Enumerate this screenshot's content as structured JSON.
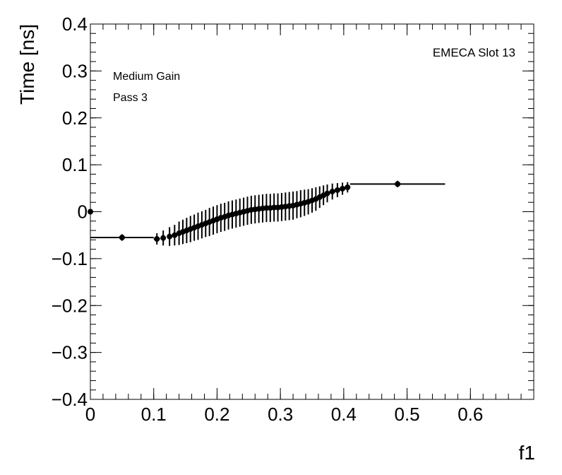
{
  "chart_data": {
    "type": "scatter",
    "xlabel": "f1",
    "ylabel": "Time [ns]",
    "xlim": [
      0,
      0.7
    ],
    "ylim": [
      -0.4,
      0.4
    ],
    "x_ticks": [
      0,
      0.1,
      0.2,
      0.3,
      0.4,
      0.5,
      0.6
    ],
    "x_tick_labels": [
      "0",
      "0.1",
      "0.2",
      "0.3",
      "0.4",
      "0.5",
      "0.6"
    ],
    "y_ticks": [
      -0.4,
      -0.3,
      -0.2,
      -0.1,
      0,
      0.1,
      0.2,
      0.3,
      0.4
    ],
    "y_tick_labels": [
      "−0.4",
      "−0.3",
      "−0.2",
      "−0.1",
      "0",
      "0.1",
      "0.2",
      "0.3",
      "0.4"
    ],
    "grid": false,
    "annotations": {
      "top_right": "EMECA Slot 13",
      "line1": "Medium Gain",
      "line2": "Pass 3"
    },
    "series": [
      {
        "points": [
          {
            "x": 0.0,
            "y": 0.0,
            "xerr": [
              0,
              0
            ],
            "yerr": 0.004
          },
          {
            "x": 0.05,
            "y": -0.055,
            "xerr": [
              0.05,
              0.05
            ],
            "yerr": 0.007
          },
          {
            "x": 0.105,
            "y": -0.058,
            "xerr": [
              0.005,
              0.005
            ],
            "yerr": 0.012
          },
          {
            "x": 0.115,
            "y": -0.056,
            "xerr": [
              0.004,
              0.004
            ],
            "yerr": 0.016
          },
          {
            "x": 0.125,
            "y": -0.053,
            "xerr": [
              0.004,
              0.004
            ],
            "yerr": 0.02
          },
          {
            "x": 0.133,
            "y": -0.05,
            "xerr": [
              0.003,
              0.003
            ],
            "yerr": 0.022
          },
          {
            "x": 0.14,
            "y": -0.046,
            "xerr": [
              0.003,
              0.003
            ],
            "yerr": 0.025
          },
          {
            "x": 0.146,
            "y": -0.043,
            "xerr": [
              0.003,
              0.003
            ],
            "yerr": 0.026
          },
          {
            "x": 0.152,
            "y": -0.04,
            "xerr": [
              0.003,
              0.003
            ],
            "yerr": 0.027
          },
          {
            "x": 0.158,
            "y": -0.037,
            "xerr": [
              0.003,
              0.003
            ],
            "yerr": 0.028
          },
          {
            "x": 0.164,
            "y": -0.034,
            "xerr": [
              0.003,
              0.003
            ],
            "yerr": 0.028
          },
          {
            "x": 0.17,
            "y": -0.031,
            "xerr": [
              0.003,
              0.003
            ],
            "yerr": 0.029
          },
          {
            "x": 0.176,
            "y": -0.028,
            "xerr": [
              0.003,
              0.003
            ],
            "yerr": 0.029
          },
          {
            "x": 0.182,
            "y": -0.025,
            "xerr": [
              0.003,
              0.003
            ],
            "yerr": 0.029
          },
          {
            "x": 0.188,
            "y": -0.022,
            "xerr": [
              0.003,
              0.003
            ],
            "yerr": 0.03
          },
          {
            "x": 0.194,
            "y": -0.019,
            "xerr": [
              0.003,
              0.003
            ],
            "yerr": 0.03
          },
          {
            "x": 0.2,
            "y": -0.016,
            "xerr": [
              0.003,
              0.003
            ],
            "yerr": 0.03
          },
          {
            "x": 0.206,
            "y": -0.013,
            "xerr": [
              0.003,
              0.003
            ],
            "yerr": 0.03
          },
          {
            "x": 0.212,
            "y": -0.011,
            "xerr": [
              0.003,
              0.003
            ],
            "yerr": 0.03
          },
          {
            "x": 0.218,
            "y": -0.008,
            "xerr": [
              0.003,
              0.003
            ],
            "yerr": 0.03
          },
          {
            "x": 0.224,
            "y": -0.006,
            "xerr": [
              0.003,
              0.003
            ],
            "yerr": 0.03
          },
          {
            "x": 0.23,
            "y": -0.004,
            "xerr": [
              0.003,
              0.003
            ],
            "yerr": 0.03
          },
          {
            "x": 0.236,
            "y": -0.002,
            "xerr": [
              0.003,
              0.003
            ],
            "yerr": 0.03
          },
          {
            "x": 0.242,
            "y": 0.0,
            "xerr": [
              0.003,
              0.003
            ],
            "yerr": 0.03
          },
          {
            "x": 0.248,
            "y": 0.002,
            "xerr": [
              0.003,
              0.003
            ],
            "yerr": 0.03
          },
          {
            "x": 0.254,
            "y": 0.004,
            "xerr": [
              0.003,
              0.003
            ],
            "yerr": 0.03
          },
          {
            "x": 0.26,
            "y": 0.005,
            "xerr": [
              0.003,
              0.003
            ],
            "yerr": 0.03
          },
          {
            "x": 0.266,
            "y": 0.006,
            "xerr": [
              0.003,
              0.003
            ],
            "yerr": 0.03
          },
          {
            "x": 0.272,
            "y": 0.007,
            "xerr": [
              0.003,
              0.003
            ],
            "yerr": 0.03
          },
          {
            "x": 0.278,
            "y": 0.008,
            "xerr": [
              0.003,
              0.003
            ],
            "yerr": 0.03
          },
          {
            "x": 0.284,
            "y": 0.008,
            "xerr": [
              0.003,
              0.003
            ],
            "yerr": 0.03
          },
          {
            "x": 0.29,
            "y": 0.009,
            "xerr": [
              0.003,
              0.003
            ],
            "yerr": 0.03
          },
          {
            "x": 0.296,
            "y": 0.009,
            "xerr": [
              0.003,
              0.003
            ],
            "yerr": 0.03
          },
          {
            "x": 0.302,
            "y": 0.01,
            "xerr": [
              0.003,
              0.003
            ],
            "yerr": 0.03
          },
          {
            "x": 0.308,
            "y": 0.011,
            "xerr": [
              0.003,
              0.003
            ],
            "yerr": 0.03
          },
          {
            "x": 0.314,
            "y": 0.012,
            "xerr": [
              0.003,
              0.003
            ],
            "yerr": 0.03
          },
          {
            "x": 0.32,
            "y": 0.013,
            "xerr": [
              0.003,
              0.003
            ],
            "yerr": 0.03
          },
          {
            "x": 0.326,
            "y": 0.015,
            "xerr": [
              0.003,
              0.003
            ],
            "yerr": 0.029
          },
          {
            "x": 0.332,
            "y": 0.017,
            "xerr": [
              0.003,
              0.003
            ],
            "yerr": 0.029
          },
          {
            "x": 0.338,
            "y": 0.019,
            "xerr": [
              0.003,
              0.003
            ],
            "yerr": 0.028
          },
          {
            "x": 0.344,
            "y": 0.021,
            "xerr": [
              0.003,
              0.003
            ],
            "yerr": 0.027
          },
          {
            "x": 0.35,
            "y": 0.024,
            "xerr": [
              0.003,
              0.003
            ],
            "yerr": 0.026
          },
          {
            "x": 0.356,
            "y": 0.027,
            "xerr": [
              0.003,
              0.003
            ],
            "yerr": 0.025
          },
          {
            "x": 0.362,
            "y": 0.031,
            "xerr": [
              0.003,
              0.003
            ],
            "yerr": 0.023
          },
          {
            "x": 0.368,
            "y": 0.035,
            "xerr": [
              0.003,
              0.003
            ],
            "yerr": 0.021
          },
          {
            "x": 0.374,
            "y": 0.039,
            "xerr": [
              0.003,
              0.003
            ],
            "yerr": 0.019
          },
          {
            "x": 0.382,
            "y": 0.043,
            "xerr": [
              0.004,
              0.004
            ],
            "yerr": 0.017
          },
          {
            "x": 0.39,
            "y": 0.046,
            "xerr": [
              0.004,
              0.004
            ],
            "yerr": 0.015
          },
          {
            "x": 0.398,
            "y": 0.049,
            "xerr": [
              0.004,
              0.004
            ],
            "yerr": 0.013
          },
          {
            "x": 0.406,
            "y": 0.052,
            "xerr": [
              0.004,
              0.004
            ],
            "yerr": 0.011
          },
          {
            "x": 0.485,
            "y": 0.059,
            "xerr": [
              0.075,
              0.075
            ],
            "yerr": 0.007
          }
        ]
      }
    ]
  }
}
